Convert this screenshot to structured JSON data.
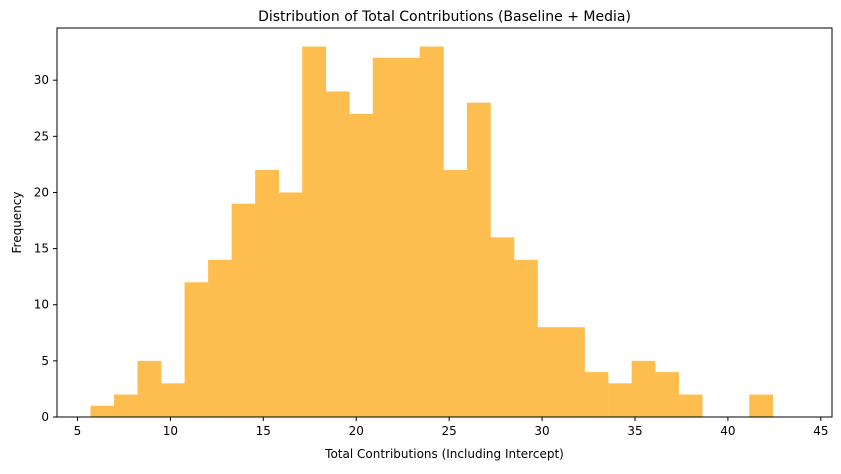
{
  "chart_data": {
    "type": "bar",
    "title": "Distribution of Total Contributions (Baseline + Media)",
    "xlabel": "Total Contributions (Including Intercept)",
    "ylabel": "Frequency",
    "xlim": [
      3.9,
      45.6
    ],
    "ylim": [
      0,
      34.65
    ],
    "xticks": [
      5,
      10,
      15,
      20,
      25,
      30,
      35,
      40,
      45
    ],
    "yticks": [
      0,
      5,
      10,
      15,
      20,
      25,
      30
    ],
    "bin_start": 5.7,
    "bin_width": 1.266,
    "values": [
      1,
      2,
      5,
      3,
      12,
      14,
      19,
      22,
      20,
      33,
      29,
      27,
      32,
      32,
      33,
      22,
      28,
      16,
      14,
      8,
      8,
      4,
      3,
      5,
      4,
      2,
      0,
      0,
      2
    ],
    "bar_color": "#fdbe4f",
    "grid": false
  }
}
